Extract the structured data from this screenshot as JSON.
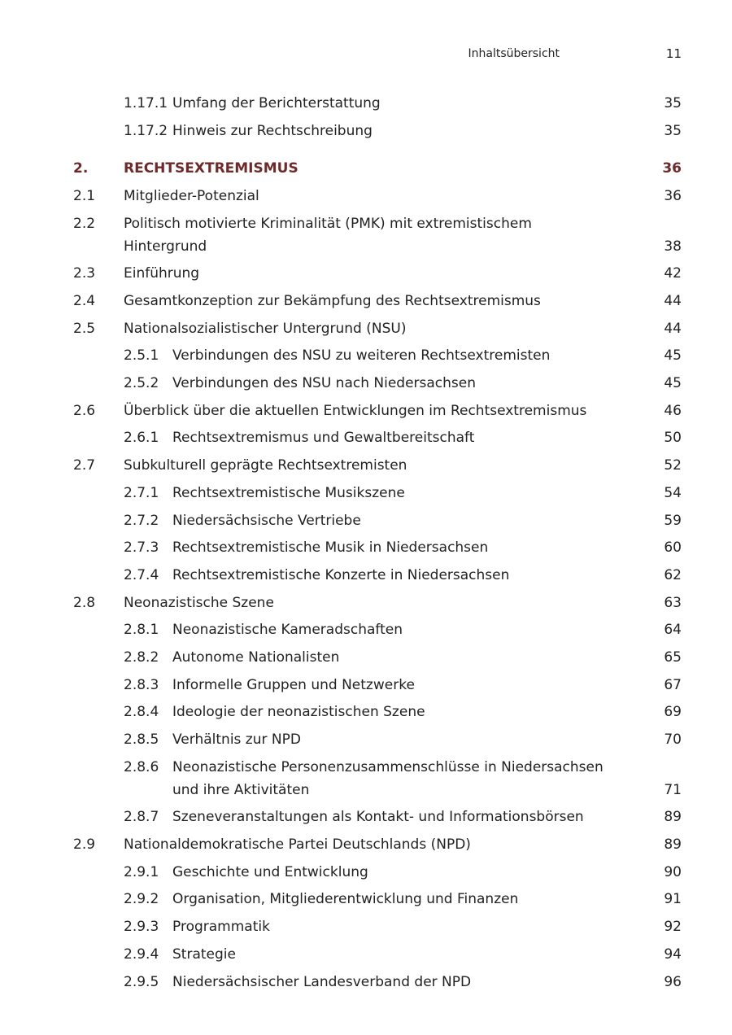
{
  "header": {
    "title": "Inhaltsübersicht",
    "page_number": "11"
  },
  "accent_color": "#6e2a2a",
  "toc": [
    {
      "level": 2,
      "num": "1.17.1",
      "title": "Umfang der Berichterstattung",
      "page": "35"
    },
    {
      "level": 2,
      "num": "1.17.2",
      "title": "Hinweis zur Rechtschreibung",
      "page": "35"
    },
    {
      "level": 0,
      "num": "2.",
      "title": "RECHTSEXTREMISMUS",
      "page": "36"
    },
    {
      "level": 1,
      "num": "2.1",
      "title": "Mitglieder-Potenzial",
      "page": "36"
    },
    {
      "level": 1,
      "num": "2.2",
      "title": "Politisch motivierte Kriminalität (PMK) mit extremistischem Hintergrund",
      "page": "38"
    },
    {
      "level": 1,
      "num": "2.3",
      "title": "Einführung",
      "page": "42"
    },
    {
      "level": 1,
      "num": "2.4",
      "title": "Gesamtkonzeption zur Bekämpfung des Rechtsextremismus",
      "page": "44"
    },
    {
      "level": 1,
      "num": "2.5",
      "title": "Nationalsozialistischer Untergrund (NSU)",
      "page": "44"
    },
    {
      "level": 2,
      "num": "2.5.1",
      "title": "Verbindungen des NSU zu weiteren Rechtsextremisten",
      "page": "45"
    },
    {
      "level": 2,
      "num": "2.5.2",
      "title": "Verbindungen des NSU nach Niedersachsen",
      "page": "45"
    },
    {
      "level": 1,
      "num": "2.6",
      "title": "Überblick über die aktuellen Entwicklungen im Rechtsextremismus",
      "page": "46"
    },
    {
      "level": 2,
      "num": "2.6.1",
      "title": "Rechtsextremismus und Gewaltbereitschaft",
      "page": "50"
    },
    {
      "level": 1,
      "num": "2.7",
      "title": "Subkulturell geprägte Rechtsextremisten",
      "page": "52"
    },
    {
      "level": 2,
      "num": "2.7.1",
      "title": "Rechtsextremistische Musikszene",
      "page": "54"
    },
    {
      "level": 2,
      "num": "2.7.2",
      "title": "Niedersächsische Vertriebe",
      "page": "59"
    },
    {
      "level": 2,
      "num": "2.7.3",
      "title": "Rechtsextremistische Musik in Niedersachsen",
      "page": "60"
    },
    {
      "level": 2,
      "num": "2.7.4",
      "title": "Rechtsextremistische Konzerte in Niedersachsen",
      "page": "62"
    },
    {
      "level": 1,
      "num": "2.8",
      "title": "Neonazistische Szene",
      "page": "63"
    },
    {
      "level": 2,
      "num": "2.8.1",
      "title": "Neonazistische Kameradschaften",
      "page": "64"
    },
    {
      "level": 2,
      "num": "2.8.2",
      "title": "Autonome Nationalisten",
      "page": "65"
    },
    {
      "level": 2,
      "num": "2.8.3",
      "title": "Informelle Gruppen und Netzwerke",
      "page": "67"
    },
    {
      "level": 2,
      "num": "2.8.4",
      "title": "Ideologie der neonazistischen Szene",
      "page": "69"
    },
    {
      "level": 2,
      "num": "2.8.5",
      "title": "Verhältnis zur NPD",
      "page": "70"
    },
    {
      "level": 2,
      "num": "2.8.6",
      "title": "Neonazistische Personenzusammenschlüsse in Niedersachsen und ihre Aktivitäten",
      "page": "71"
    },
    {
      "level": 2,
      "num": "2.8.7",
      "title": "Szeneveranstaltungen als Kontakt- und Informationsbörsen",
      "page": "89"
    },
    {
      "level": 1,
      "num": "2.9",
      "title": "Nationaldemokratische Partei Deutschlands (NPD)",
      "page": "89"
    },
    {
      "level": 2,
      "num": "2.9.1",
      "title": "Geschichte und Entwicklung",
      "page": "90"
    },
    {
      "level": 2,
      "num": "2.9.2",
      "title": "Organisation, Mitgliederentwicklung und Finanzen",
      "page": "91"
    },
    {
      "level": 2,
      "num": "2.9.3",
      "title": "Programmatik",
      "page": "92"
    },
    {
      "level": 2,
      "num": "2.9.4",
      "title": "Strategie",
      "page": "94"
    },
    {
      "level": 2,
      "num": "2.9.5",
      "title": "Niedersächsischer Landesverband der NPD",
      "page": "96"
    }
  ]
}
